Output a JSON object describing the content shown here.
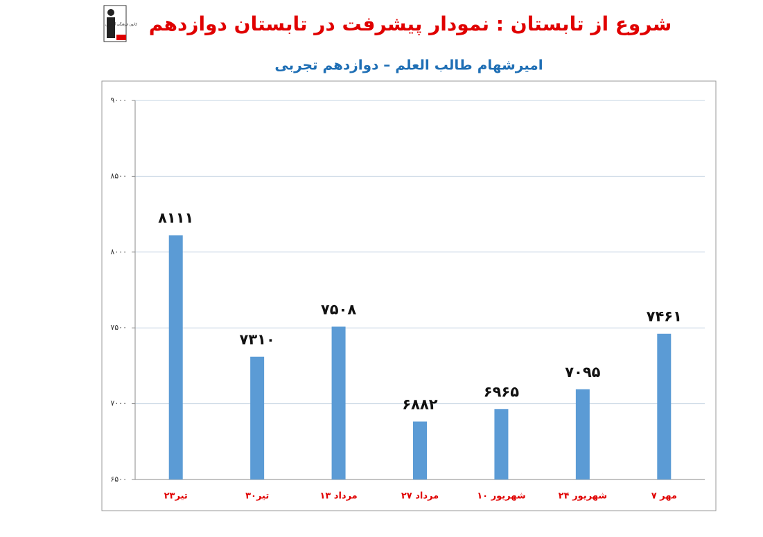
{
  "chart_data": {
    "type": "bar",
    "logo_text": "کانون فرهنگی آموزش",
    "title": "شروع از تابستان : نمودار پیشرفت در تابستان دوازدهم",
    "subtitle": "امیرشهام طالب العلم – دوازدهم تجربی",
    "categories": [
      "۲۳تیر",
      "۳۰تیر",
      "۱۳ مرداد",
      "۲۷ مرداد",
      "۱۰ شهریور",
      "۲۴ شهریور",
      "۷ مهر"
    ],
    "values": [
      8111,
      7310,
      7508,
      6882,
      6965,
      7095,
      7461
    ],
    "value_labels": [
      "۸۱۱۱",
      "۷۳۱۰",
      "۷۵۰۸",
      "۶۸۸۲",
      "۶۹۶۵",
      "۷۰۹۵",
      "۷۴۶۱"
    ],
    "color": "#5b9bd5",
    "ylim": [
      6500,
      9000
    ],
    "yticks": [
      {
        "value": 6500,
        "label": "۶۵۰۰"
      },
      {
        "value": 7000,
        "label": "۷۰۰۰"
      },
      {
        "value": 7500,
        "label": "۷۵۰۰"
      },
      {
        "value": 8000,
        "label": "۸۰۰۰"
      },
      {
        "value": 8500,
        "label": "۸۵۰۰"
      },
      {
        "value": 9000,
        "label": "۹۰۰۰"
      }
    ],
    "grid": true
  }
}
